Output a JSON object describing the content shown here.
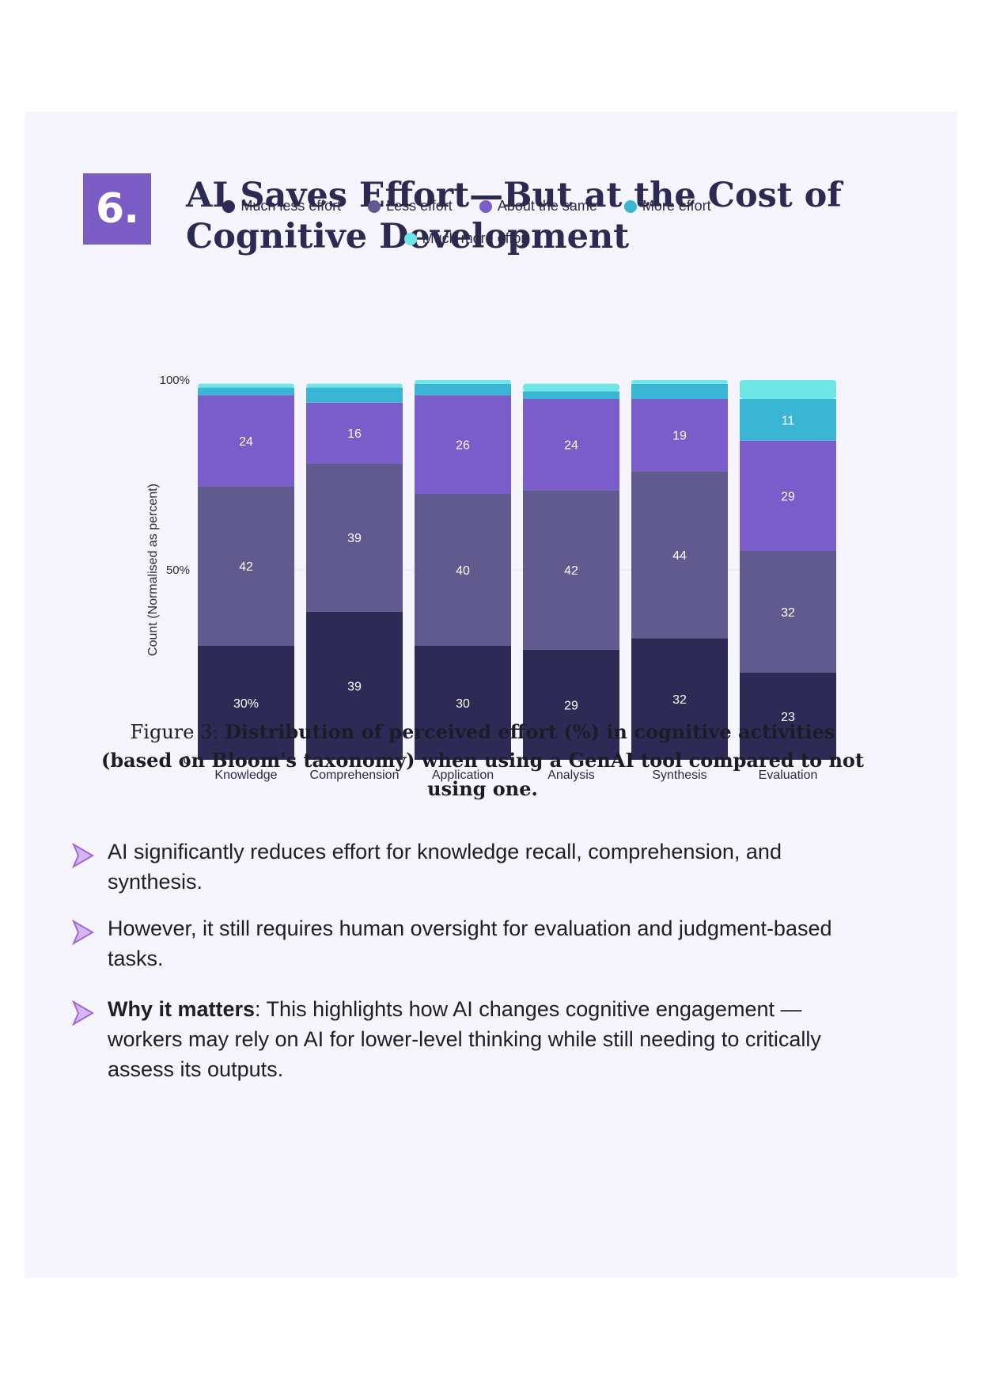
{
  "section": {
    "number": "6.",
    "title_line1": "AI Saves Effort—But at the Cost of",
    "title_line2": "Cognitive Development"
  },
  "legend": [
    {
      "label": "Much less effort",
      "color": "#2d2b55"
    },
    {
      "label": "Less effort",
      "color": "#615a8f"
    },
    {
      "label": "About the same",
      "color": "#7b5ccb"
    },
    {
      "label": "More effort",
      "color": "#3bb5d4"
    },
    {
      "label": "Much more effort",
      "color": "#6ee6e6"
    }
  ],
  "chart_data": {
    "type": "bar",
    "stacked": true,
    "ylabel": "Count (Normalised as percent)",
    "y_ticks": [
      "0",
      "50%",
      "100%"
    ],
    "ylim": [
      0,
      100
    ],
    "categories": [
      "Knowledge",
      "Comprehension",
      "Application",
      "Analysis",
      "Synthesis",
      "Evaluation"
    ],
    "series": [
      {
        "name": "Much less effort",
        "color": "#2d2b55",
        "values": [
          30,
          39,
          30,
          29,
          32,
          23
        ],
        "labels": [
          "30%",
          "39",
          "30",
          "29",
          "32",
          "23"
        ]
      },
      {
        "name": "Less effort",
        "color": "#615a8f",
        "values": [
          42,
          39,
          40,
          42,
          44,
          32
        ],
        "labels": [
          "42",
          "39",
          "40",
          "42",
          "44",
          "32"
        ]
      },
      {
        "name": "About the same",
        "color": "#7b5ccb",
        "values": [
          24,
          16,
          26,
          24,
          19,
          29
        ],
        "labels": [
          "24",
          "16",
          "26",
          "24",
          "19",
          "29"
        ]
      },
      {
        "name": "More effort",
        "color": "#3bb5d4",
        "values": [
          2,
          4,
          3,
          2,
          4,
          11
        ],
        "labels": [
          "",
          "",
          "",
          "",
          "",
          "11"
        ]
      },
      {
        "name": "Much more effort",
        "color": "#6ee6e6",
        "values": [
          1,
          1,
          1,
          2,
          1,
          5
        ],
        "labels": [
          "",
          "",
          "",
          "",
          "",
          ""
        ]
      }
    ]
  },
  "caption": {
    "prefix": "Figure 3: ",
    "bold": "Distribution of perceived effort (%) in cognitive activities (based on Bloom's taxonomy) when using a GenAI tool compared to not using one."
  },
  "bullets": [
    {
      "bold": "",
      "text": "AI significantly reduces effort for knowledge recall, comprehension, and synthesis."
    },
    {
      "bold": "",
      "text": "However, it still requires human oversight for evaluation and judgment-based tasks."
    },
    {
      "bold": "Why it matters",
      "text": ": This highlights how AI changes cognitive engagement —workers may rely on AI for lower-level thinking while still needing to critically assess its outputs."
    }
  ]
}
